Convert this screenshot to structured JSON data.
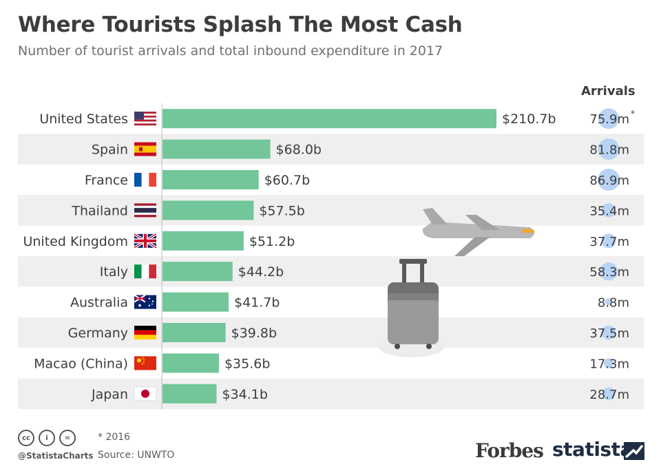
{
  "title": "Where Tourists Splash The Most Cash",
  "subtitle": "Number of tourist arrivals and total inbound expenditure in 2017",
  "arrivals_header": "Arrivals",
  "colors": {
    "bar": "#72c699",
    "bubble": "#b9d3f5",
    "row_shade": "#efefef"
  },
  "chart_data": {
    "type": "bar",
    "orientation": "horizontal",
    "categories": [
      "United States",
      "Spain",
      "France",
      "Thailand",
      "United Kingdom",
      "Italy",
      "Australia",
      "Germany",
      "Macao (China)",
      "Japan"
    ],
    "flags": [
      "us-flag-icon",
      "spain-flag-icon",
      "france-flag-icon",
      "thailand-flag-icon",
      "uk-flag-icon",
      "italy-flag-icon",
      "australia-flag-icon",
      "germany-flag-icon",
      "china-flag-icon",
      "japan-flag-icon"
    ],
    "series": [
      {
        "values": [
          210.7,
          68.0,
          60.7,
          57.5,
          51.2,
          44.2,
          41.7,
          39.8,
          35.6,
          34.1
        ],
        "labels": [
          "$210.7b",
          "$68.0b",
          "$60.7b",
          "$57.5b",
          "$51.2b",
          "$44.2b",
          "$41.7b",
          "$39.8b",
          "$35.6b",
          "$34.1b"
        ]
      },
      {
        "name": "Arrivals",
        "values": [
          75.9,
          81.8,
          86.9,
          35.4,
          37.7,
          58.3,
          8.8,
          37.5,
          17.3,
          28.7
        ],
        "labels": [
          "75.9m",
          "81.8m",
          "86.9m",
          "35.4m",
          "37.7m",
          "58.3m",
          "8.8m",
          "37.5m",
          "17.3m",
          "28.7m"
        ],
        "marks": [
          "*",
          "",
          "",
          "",
          "",
          "",
          "",
          "",
          "",
          ""
        ]
      }
    ],
    "legend": "none",
    "grid": false
  },
  "footnote": "* 2016",
  "source": "Source: UNWTO",
  "handle": "@StatistaCharts",
  "cc_icons": [
    "cc",
    "i",
    "="
  ],
  "brands": {
    "forbes": "Forbes",
    "statista": "statista"
  }
}
